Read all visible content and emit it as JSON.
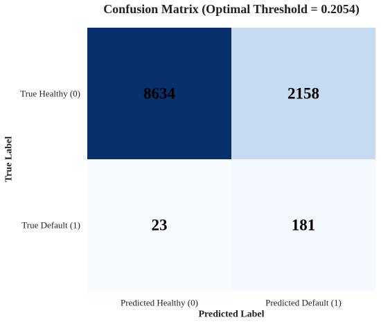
{
  "chart_data": {
    "type": "heatmap",
    "title": "Confusion Matrix (Optimal Threshold = 0.2054)",
    "xlabel": "Predicted Label",
    "ylabel": "True Label",
    "x_categories": [
      "Predicted Healthy (0)",
      "Predicted Default (1)"
    ],
    "y_categories": [
      "True Healthy (0)",
      "True Default (1)"
    ],
    "values": [
      [
        8634,
        2158
      ],
      [
        23,
        181
      ]
    ],
    "colormap": "Blues",
    "colorbar": false,
    "grid": false,
    "colors": {
      "low": "#f7fbff",
      "high": "#08306b",
      "cell_text": "#000000"
    }
  }
}
